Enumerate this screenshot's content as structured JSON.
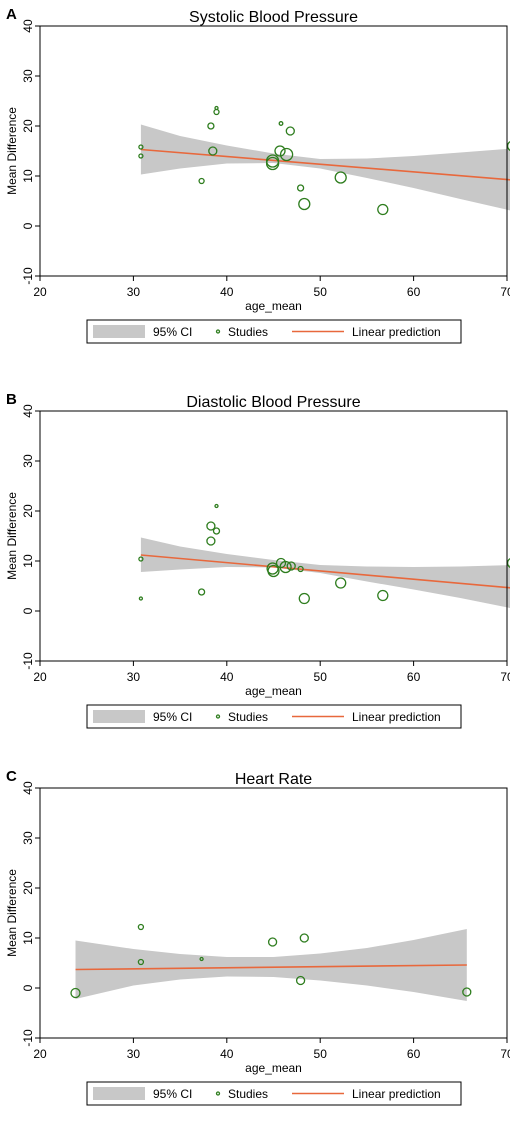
{
  "legend": {
    "ci": "95% CI",
    "studies": "Studies",
    "linear": "Linear prediction"
  },
  "colors": {
    "ci_band": "#c8c8c8",
    "studies": "#2e7d1e",
    "linear": "#e8683c",
    "frame": "#000000"
  },
  "chart_data": [
    {
      "panel": "A",
      "type": "scatter",
      "title": "Systolic Blood Pressure",
      "xlabel": "age_mean",
      "ylabel": "Mean Difference",
      "xlim": [
        20,
        70
      ],
      "ylim": [
        -10,
        40
      ],
      "xticks": [
        20,
        30,
        40,
        50,
        60,
        70
      ],
      "yticks": [
        -10,
        0,
        10,
        20,
        30,
        40
      ],
      "points": [
        {
          "x": 30.8,
          "y": 15.8,
          "size": 2
        },
        {
          "x": 30.8,
          "y": 14.0,
          "size": 2
        },
        {
          "x": 37.3,
          "y": 9.0,
          "size": 2.5
        },
        {
          "x": 38.3,
          "y": 20.0,
          "size": 3
        },
        {
          "x": 38.5,
          "y": 15.0,
          "size": 4
        },
        {
          "x": 38.9,
          "y": 23.6,
          "size": 1.5
        },
        {
          "x": 38.9,
          "y": 22.8,
          "size": 2.5
        },
        {
          "x": 44.9,
          "y": 13.0,
          "size": 6
        },
        {
          "x": 44.9,
          "y": 12.5,
          "size": 6
        },
        {
          "x": 45.7,
          "y": 15.0,
          "size": 5
        },
        {
          "x": 45.8,
          "y": 20.5,
          "size": 1.8
        },
        {
          "x": 46.4,
          "y": 14.3,
          "size": 6
        },
        {
          "x": 46.8,
          "y": 19.0,
          "size": 4
        },
        {
          "x": 47.9,
          "y": 7.6,
          "size": 3
        },
        {
          "x": 48.3,
          "y": 4.4,
          "size": 5.5
        },
        {
          "x": 52.2,
          "y": 9.7,
          "size": 5.5
        },
        {
          "x": 56.7,
          "y": 3.3,
          "size": 5
        },
        {
          "x": 70.6,
          "y": 16.0,
          "size": 5
        }
      ],
      "ci_band": {
        "x": [
          30.8,
          35,
          40,
          45,
          50,
          55,
          60,
          65,
          70.6
        ],
        "lower": [
          10.3,
          11.5,
          12.5,
          12.6,
          11.5,
          9.6,
          7.6,
          5.4,
          3.0
        ],
        "upper": [
          20.3,
          18.0,
          16.1,
          14.5,
          13.4,
          13.5,
          14.0,
          14.7,
          15.5
        ]
      },
      "line": {
        "x": [
          30.8,
          70.6
        ],
        "y": [
          15.3,
          9.2
        ]
      }
    },
    {
      "panel": "B",
      "type": "scatter",
      "title": "Diastolic Blood Pressure",
      "xlabel": "age_mean",
      "ylabel": "Mean Difference",
      "xlim": [
        20,
        70
      ],
      "ylim": [
        -10,
        40
      ],
      "xticks": [
        20,
        30,
        40,
        50,
        60,
        70
      ],
      "yticks": [
        -10,
        0,
        10,
        20,
        30,
        40
      ],
      "points": [
        {
          "x": 30.8,
          "y": 10.4,
          "size": 2
        },
        {
          "x": 30.8,
          "y": 2.5,
          "size": 1.5
        },
        {
          "x": 37.3,
          "y": 3.8,
          "size": 3
        },
        {
          "x": 38.3,
          "y": 17.0,
          "size": 4
        },
        {
          "x": 38.3,
          "y": 14.0,
          "size": 4
        },
        {
          "x": 38.9,
          "y": 21.0,
          "size": 1.5
        },
        {
          "x": 38.9,
          "y": 16.0,
          "size": 3
        },
        {
          "x": 44.9,
          "y": 8.5,
          "size": 5.5
        },
        {
          "x": 45.0,
          "y": 8.0,
          "size": 5.5
        },
        {
          "x": 45.8,
          "y": 9.6,
          "size": 4.5
        },
        {
          "x": 46.3,
          "y": 8.8,
          "size": 5.5
        },
        {
          "x": 46.9,
          "y": 9.0,
          "size": 4
        },
        {
          "x": 47.9,
          "y": 8.4,
          "size": 2.5
        },
        {
          "x": 48.3,
          "y": 2.5,
          "size": 5
        },
        {
          "x": 52.2,
          "y": 5.6,
          "size": 5
        },
        {
          "x": 56.7,
          "y": 3.1,
          "size": 5
        },
        {
          "x": 70.6,
          "y": 9.6,
          "size": 5
        }
      ],
      "ci_band": {
        "x": [
          30.8,
          35,
          40,
          45,
          50,
          55,
          60,
          65,
          70.6
        ],
        "lower": [
          7.8,
          8.3,
          8.8,
          8.7,
          7.6,
          5.9,
          4.3,
          2.6,
          0.5
        ],
        "upper": [
          14.7,
          12.9,
          11.4,
          10.2,
          9.2,
          8.9,
          8.8,
          8.9,
          9.2
        ]
      },
      "line": {
        "x": [
          30.8,
          70.6
        ],
        "y": [
          11.2,
          4.6
        ]
      }
    },
    {
      "panel": "C",
      "type": "scatter",
      "title": "Heart Rate",
      "xlabel": "age_mean",
      "ylabel": "Mean Difference",
      "xlim": [
        20,
        70
      ],
      "ylim": [
        -10,
        40
      ],
      "xticks": [
        20,
        30,
        40,
        50,
        60,
        70
      ],
      "yticks": [
        -10,
        0,
        10,
        20,
        30,
        40
      ],
      "points": [
        {
          "x": 23.8,
          "y": -1.0,
          "size": 4.5
        },
        {
          "x": 30.8,
          "y": 12.2,
          "size": 2.5
        },
        {
          "x": 30.8,
          "y": 5.2,
          "size": 2.5
        },
        {
          "x": 37.3,
          "y": 5.8,
          "size": 1.5
        },
        {
          "x": 44.9,
          "y": 9.2,
          "size": 4
        },
        {
          "x": 47.9,
          "y": 1.5,
          "size": 4
        },
        {
          "x": 48.3,
          "y": 10.0,
          "size": 4
        },
        {
          "x": 65.7,
          "y": -0.8,
          "size": 4
        }
      ],
      "ci_band": {
        "x": [
          23.8,
          30,
          35,
          40,
          45,
          50,
          55,
          60,
          65.7
        ],
        "lower": [
          -2.2,
          0.5,
          1.7,
          2.3,
          2.2,
          1.5,
          0.5,
          -0.8,
          -2.6
        ],
        "upper": [
          9.5,
          7.8,
          6.8,
          6.2,
          6.2,
          6.9,
          8.0,
          9.6,
          11.8
        ]
      },
      "line": {
        "x": [
          23.8,
          65.7
        ],
        "y": [
          3.7,
          4.6
        ]
      }
    }
  ]
}
